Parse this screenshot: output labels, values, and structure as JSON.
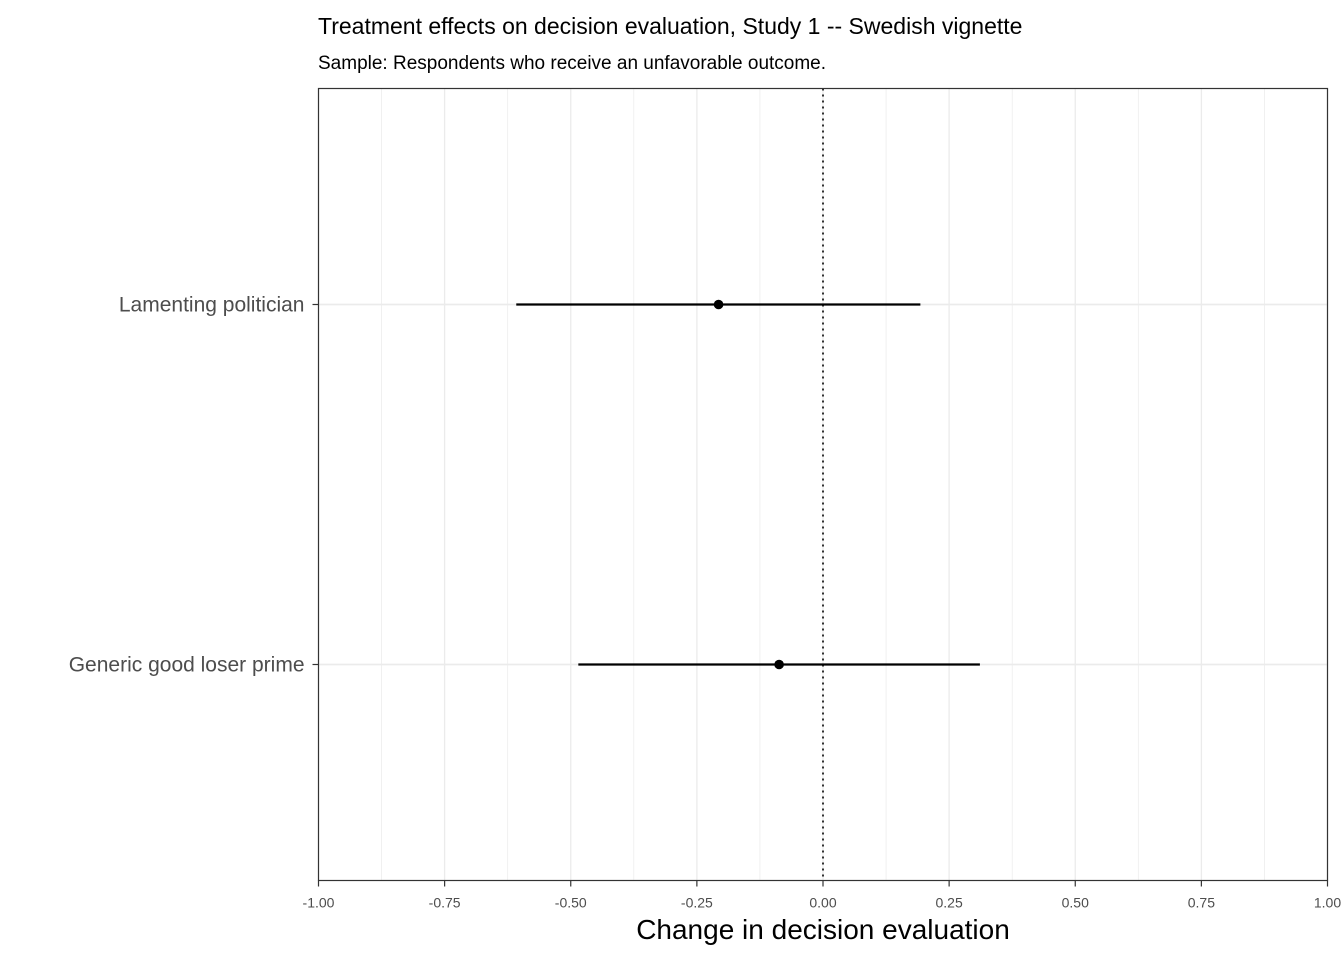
{
  "chart_data": {
    "type": "scatter",
    "subtype": "coefficient-plot",
    "title": "Treatment effects on decision evaluation, Study 1 -- Swedish vignette",
    "subtitle": "Sample: Respondents who receive an unfavorable outcome.",
    "xlabel": "Change in decision evaluation",
    "ylabel": "",
    "xlim": [
      -1.0,
      1.0
    ],
    "xticks": [
      -1.0,
      -0.75,
      -0.5,
      -0.25,
      0.0,
      0.25,
      0.5,
      0.75,
      1.0
    ],
    "xtick_labels": [
      "-1.00",
      "-0.75",
      "-0.50",
      "-0.25",
      "0.00",
      "0.25",
      "0.50",
      "0.75",
      "1.00"
    ],
    "reference_line": {
      "x": 0.0,
      "style": "dotted"
    },
    "grid": true,
    "categories": [
      "Lamenting politician",
      "Generic good loser prime"
    ],
    "estimates": [
      {
        "label": "Lamenting politician",
        "estimate": -0.207,
        "ci_low": -0.608,
        "ci_high": 0.193
      },
      {
        "label": "Generic good loser prime",
        "estimate": -0.087,
        "ci_low": -0.485,
        "ci_high": 0.311
      }
    ],
    "colors": {
      "point": "#000000",
      "grid": "#ebebeb",
      "border": "#333333"
    }
  }
}
